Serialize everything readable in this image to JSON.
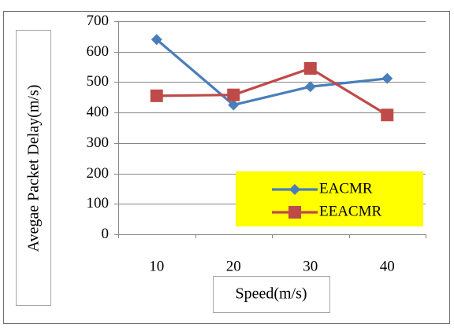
{
  "chart_data": {
    "type": "line",
    "title": "",
    "xlabel": "Speed(m/s)",
    "ylabel": "Avegae Packet Delay(m/s)",
    "categories": [
      "10",
      "20",
      "30",
      "40"
    ],
    "ylim": [
      0,
      700
    ],
    "yticks": [
      0,
      100,
      200,
      300,
      400,
      500,
      600,
      700
    ],
    "grid": true,
    "legend_position": "bottom-right",
    "legend_background": "#ffff00",
    "series": [
      {
        "name": "EACMR",
        "values": [
          640,
          425,
          485,
          512
        ],
        "color": "#4a7ebb",
        "marker": "diamond"
      },
      {
        "name": "EEACMR",
        "values": [
          455,
          458,
          545,
          392
        ],
        "color": "#be4b48",
        "marker": "square"
      }
    ]
  }
}
